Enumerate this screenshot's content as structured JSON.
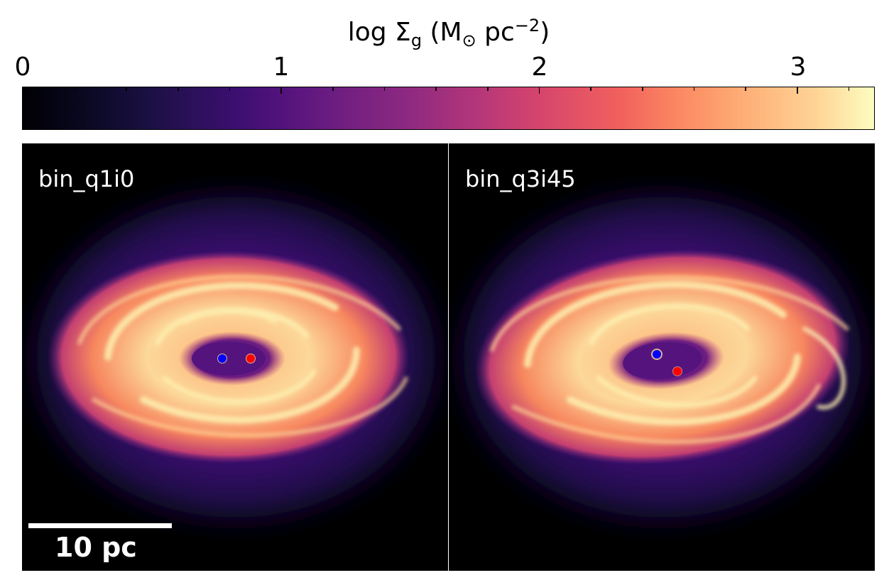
{
  "colorbar": {
    "title_prefix": "log Σ",
    "title_sub": "g",
    "title_mid": " (M",
    "title_sun": "⊙",
    "title_unit": " pc",
    "title_sup": "−2",
    "title_end": ")",
    "range": [
      0,
      3.3
    ],
    "major_ticks": [
      "0",
      "1",
      "2",
      "3"
    ],
    "colormap": "magma"
  },
  "panels": [
    {
      "label": "bin_q1i0",
      "scalebar_label": "10 pc",
      "black_holes": [
        {
          "color": "#0000ff"
        },
        {
          "color": "#ff0000"
        }
      ]
    },
    {
      "label": "bin_q3i45",
      "black_holes": [
        {
          "color": "#0000ff"
        },
        {
          "color": "#ff0000"
        }
      ]
    }
  ]
}
